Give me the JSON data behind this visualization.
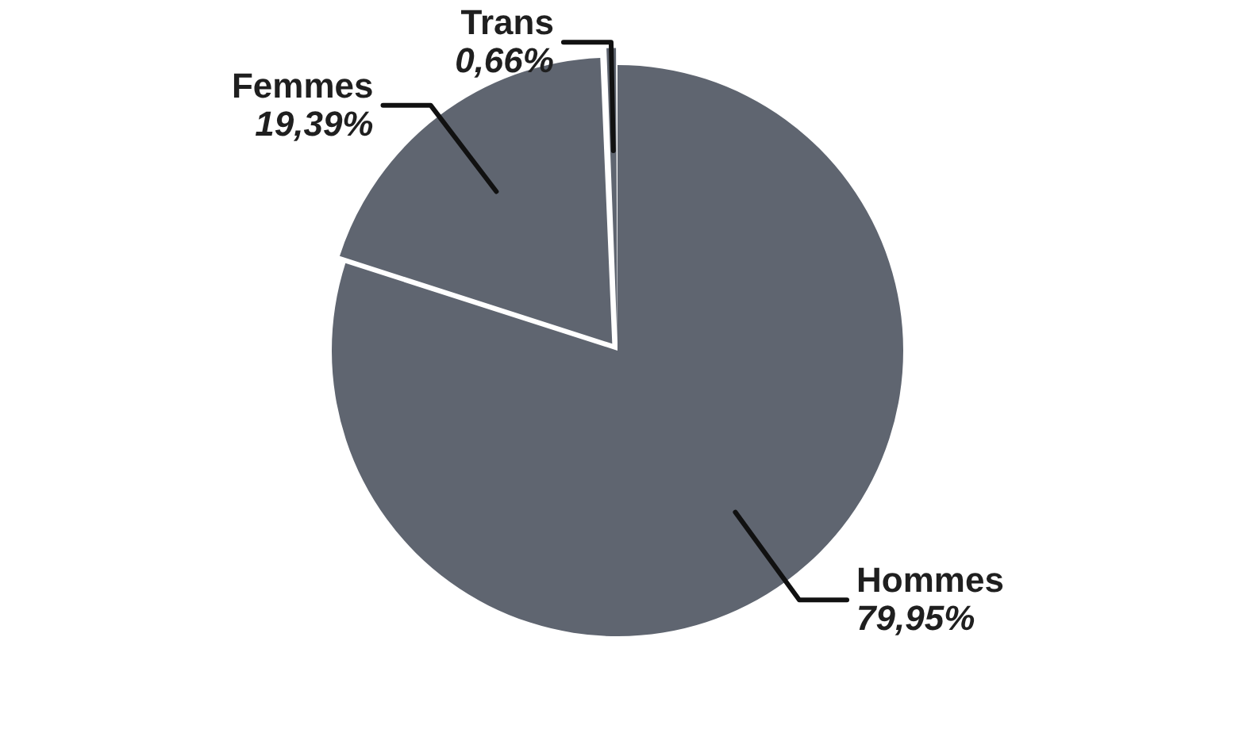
{
  "chart_data": {
    "type": "pie",
    "categories": [
      "Hommes",
      "Femmes",
      "Trans"
    ],
    "values": [
      79.95,
      19.39,
      0.66
    ],
    "colors": [
      "#5f6570",
      "#5f6570",
      "#5f6570"
    ],
    "value_labels": [
      "79,95%",
      "19,39%",
      "0,66%"
    ],
    "legend": false
  }
}
